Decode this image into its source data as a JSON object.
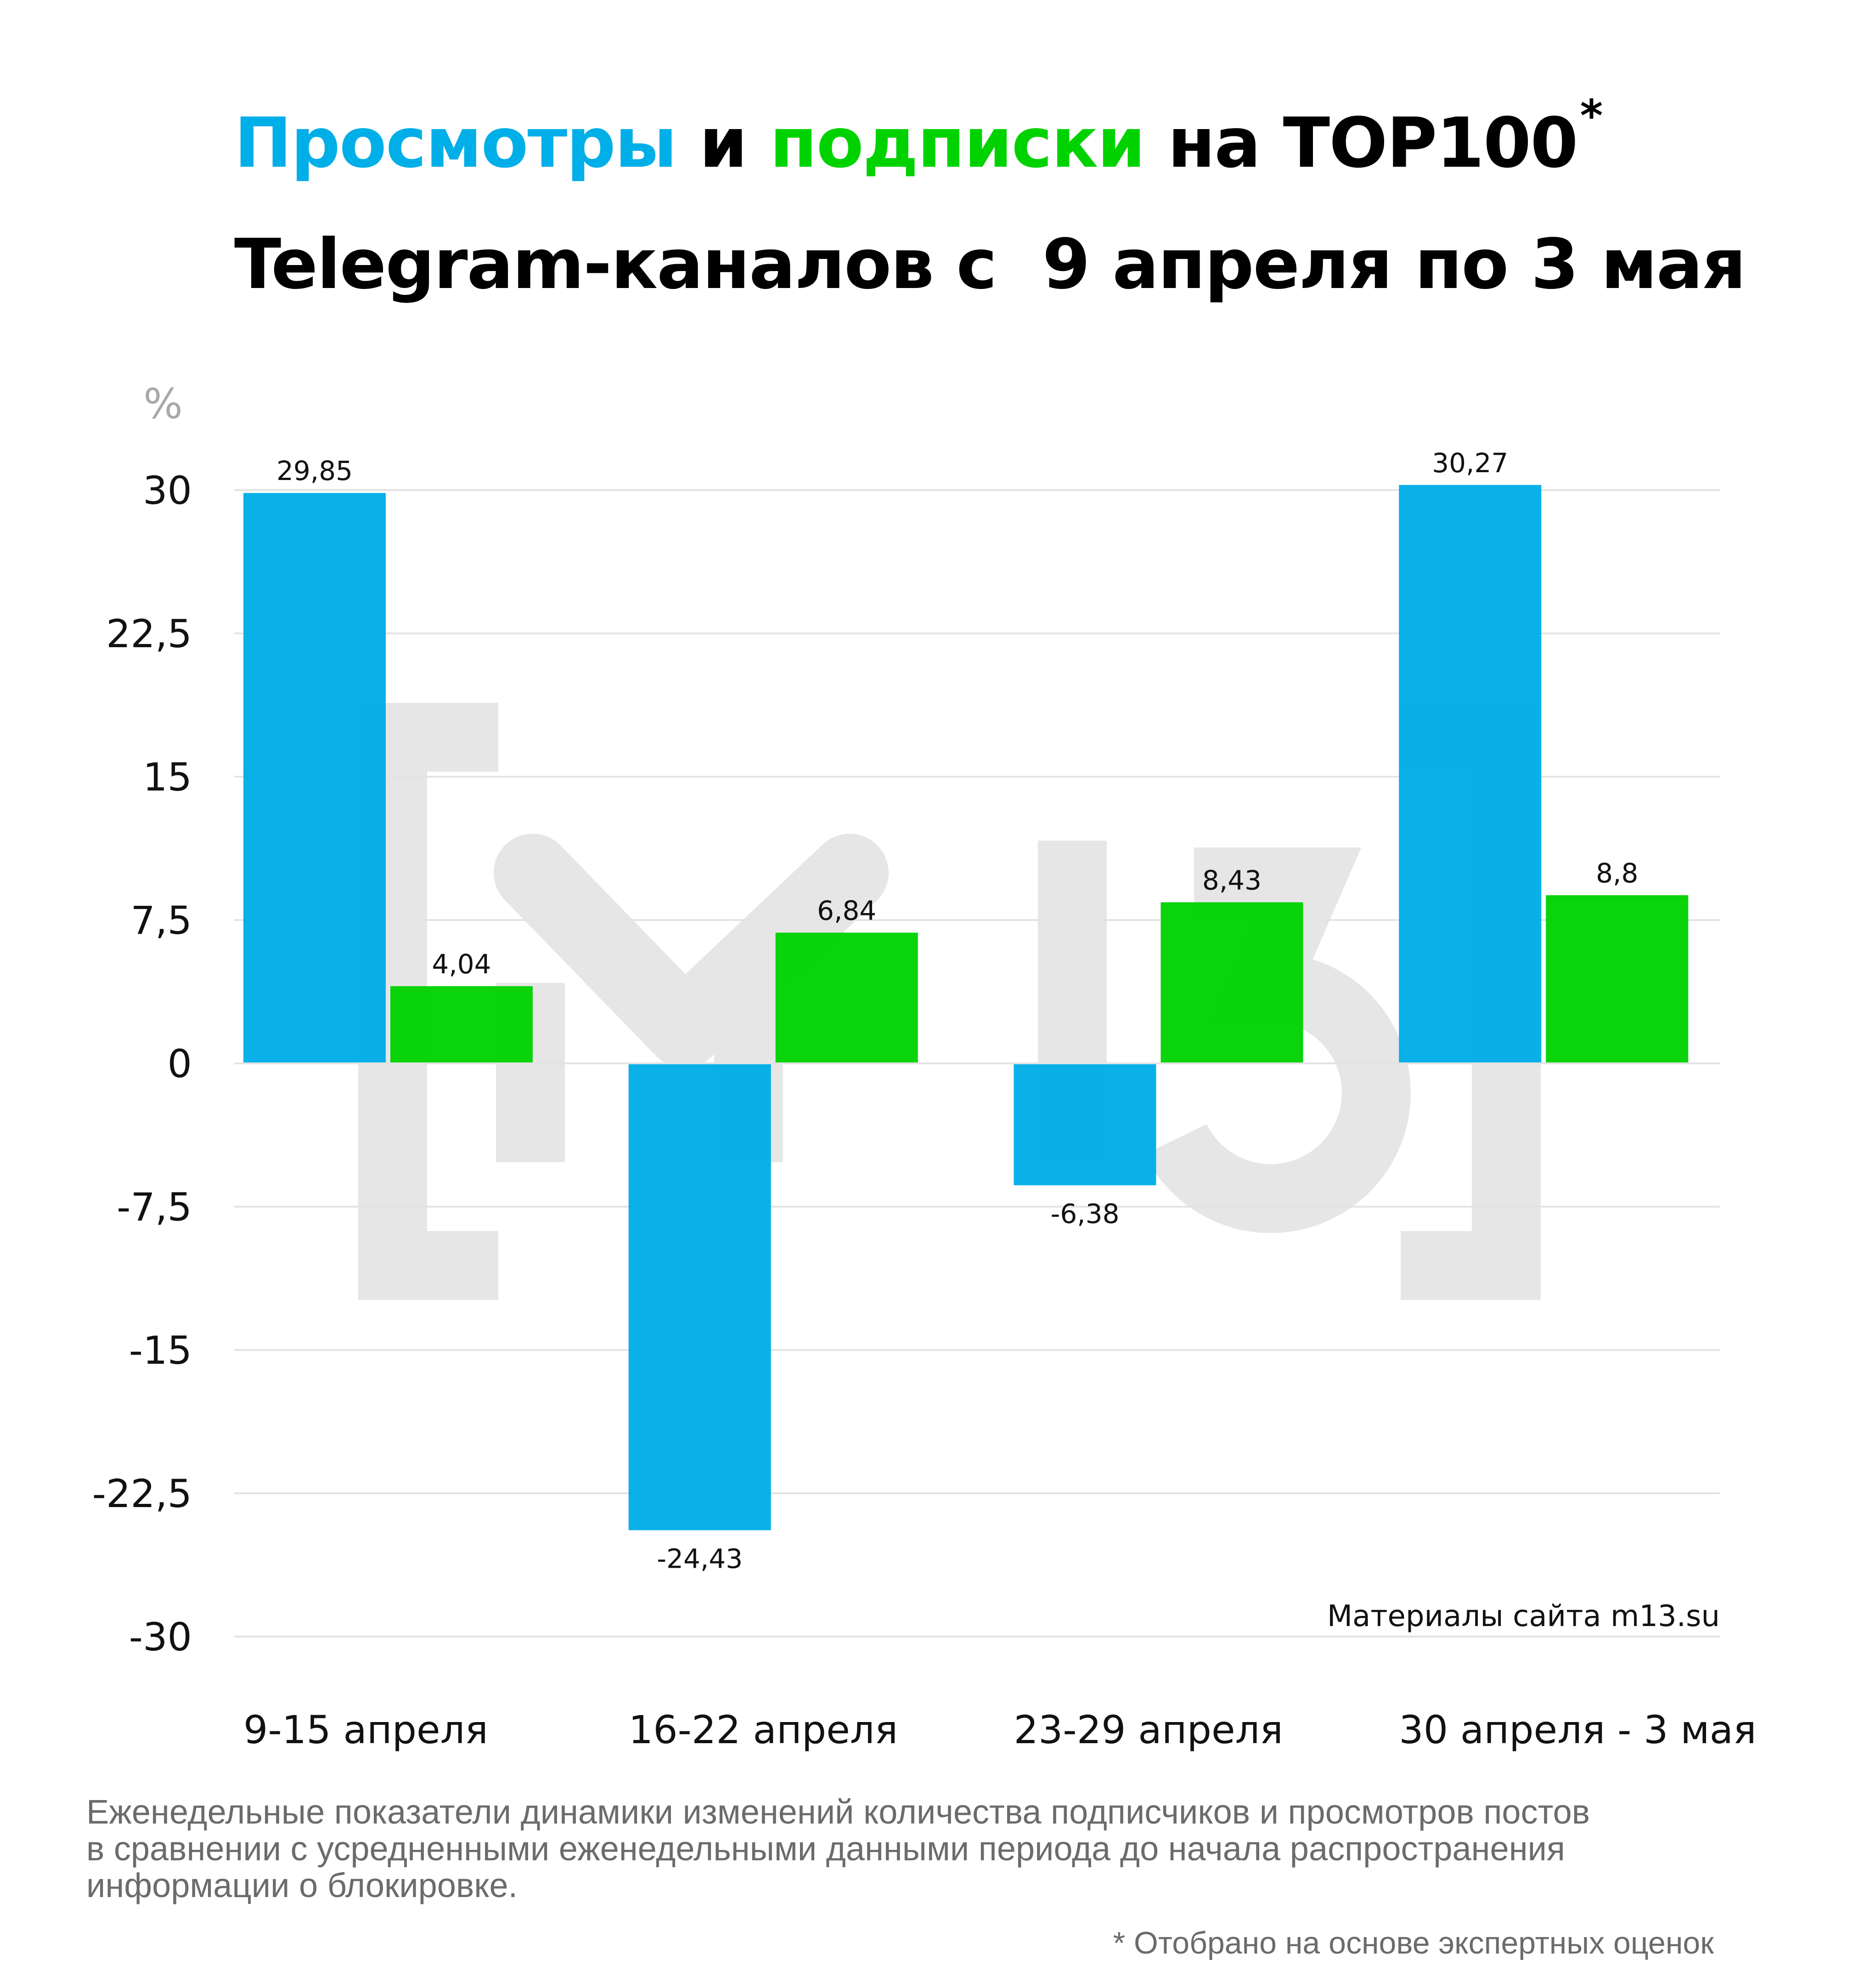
{
  "title": {
    "views_word": "Просмотры",
    "and_word": " и ",
    "subs_word": "подписки",
    "line1_rest": " на TOP100",
    "asterisk": "*",
    "line2": "Telegram-каналов с  9 апреля по 3 мая"
  },
  "colors": {
    "views": "#00aee8",
    "subscriptions": "#00d200",
    "watermark": "#e6e6e6",
    "grid": "#e3e3e3"
  },
  "chart_data": {
    "type": "bar",
    "ylabel": "%",
    "ylim": [
      -30,
      30
    ],
    "yticks": [
      "30",
      "22,5",
      "15",
      "7,5",
      "0",
      "-7,5",
      "-15",
      "-22,5",
      "-30"
    ],
    "ytick_values": [
      30,
      22.5,
      15,
      7.5,
      0,
      -7.5,
      -15,
      -22.5,
      -30
    ],
    "categories": [
      "9-15 апреля",
      "16-22 апреля",
      "23-29 апреля",
      "30 апреля - 3 мая"
    ],
    "series": [
      {
        "key": "views",
        "values": [
          29.85,
          -24.43,
          -6.38,
          30.27
        ],
        "labels": [
          "29,85",
          "-24,43",
          "-6,38",
          "30,27"
        ]
      },
      {
        "key": "subscriptions",
        "values": [
          4.04,
          6.84,
          8.43,
          8.8
        ],
        "labels": [
          "4,04",
          "6,84",
          "8,43",
          "8,8"
        ]
      }
    ],
    "grid": true,
    "source_note": "Материалы сайта m13.su",
    "watermark": "[M13]"
  },
  "notes": {
    "lines": [
      "Еженедельные показатели динамики изменений количества подписчиков и просмотров постов",
      "в сравнении с усредненными еженедельными данными периода до начала распространения",
      "информации о блокировке."
    ],
    "footnote": "* Отобрано на основе экспертных оценок"
  }
}
